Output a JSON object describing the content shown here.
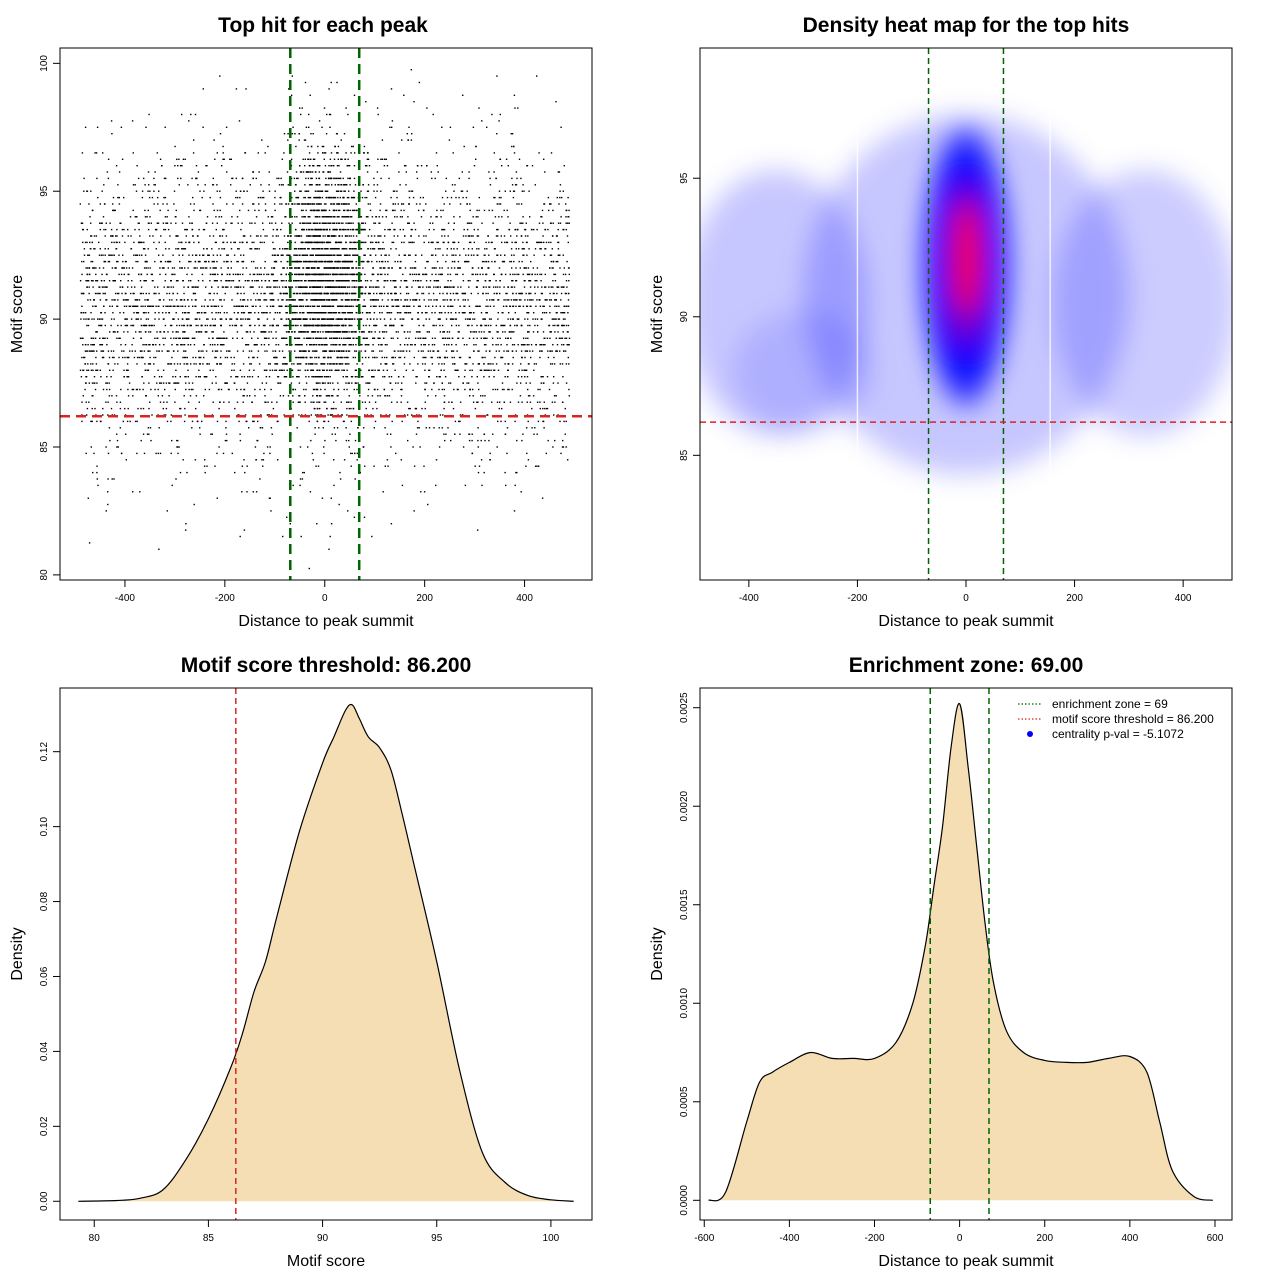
{
  "chart_data": [
    {
      "type": "scatter",
      "title": "Top hit for each peak",
      "xlabel": "Distance to peak summit",
      "ylabel": "Motif score",
      "xlim": [
        -530,
        535
      ],
      "ylim": [
        79.8,
        100.6
      ],
      "xticks": [
        -400,
        -200,
        0,
        200,
        400
      ],
      "yticks": [
        80,
        85,
        90,
        95,
        100
      ],
      "vlines": [
        -69,
        69
      ],
      "hline": 86.2,
      "point_count": 7000,
      "x_range": [
        -490,
        490
      ],
      "colors": {
        "points": "#000000",
        "vline": "#006400",
        "hline": "#dd2222"
      }
    },
    {
      "type": "heatmap",
      "title": "Density heat map for the top hits",
      "xlabel": "Distance to peak summit",
      "ylabel": "Motif score",
      "xlim": [
        -490,
        490
      ],
      "ylim": [
        80.5,
        99.7
      ],
      "xticks": [
        -400,
        -200,
        0,
        200,
        400
      ],
      "yticks": [
        85,
        90,
        95
      ],
      "vlines": [
        -69,
        69
      ],
      "hline": 86.2,
      "colors": {
        "low": "#ffffff",
        "mid": "#0000ff",
        "high": "#ff0000",
        "vline": "#006400",
        "hline": "#dd2222"
      }
    },
    {
      "type": "area",
      "title": "Motif score threshold: 86.200",
      "xlabel": "Motif score",
      "ylabel": "Density",
      "xlim": [
        78.5,
        101.8
      ],
      "ylim": [
        -0.005,
        0.137
      ],
      "xticks": [
        80,
        85,
        90,
        95,
        100
      ],
      "yticks": [
        0.0,
        0.02,
        0.04,
        0.06,
        0.08,
        0.1,
        0.12
      ],
      "vline": 86.2,
      "x": [
        79.3,
        81,
        82,
        83,
        84,
        85,
        86,
        86.5,
        87,
        87.5,
        88,
        89,
        90,
        90.5,
        91,
        91.3,
        91.6,
        92,
        92.5,
        93,
        93.5,
        94,
        95,
        96,
        97,
        98,
        99,
        100,
        101
      ],
      "y": [
        0,
        0.0002,
        0.0008,
        0.003,
        0.011,
        0.022,
        0.036,
        0.045,
        0.056,
        0.064,
        0.076,
        0.099,
        0.117,
        0.124,
        0.131,
        0.1325,
        0.129,
        0.124,
        0.121,
        0.115,
        0.103,
        0.09,
        0.064,
        0.035,
        0.013,
        0.005,
        0.0015,
        0.0004,
        0
      ],
      "colors": {
        "fill": "#f5deb3",
        "line": "#000000",
        "vline": "#dd2222"
      }
    },
    {
      "type": "area",
      "title": "Enrichment zone: 69.00",
      "xlabel": "Distance to peak summit",
      "ylabel": "Density",
      "xlim": [
        -610,
        640
      ],
      "ylim": [
        -0.0001,
        0.0026
      ],
      "xticks": [
        -600,
        -400,
        -200,
        0,
        200,
        400,
        600
      ],
      "yticks": [
        "0.0000",
        "0.0005",
        "0.0010",
        "0.0015",
        "0.0020",
        "0.0025"
      ],
      "vlines": [
        -69,
        69
      ],
      "x": [
        -590,
        -550,
        -500,
        -470,
        -440,
        -400,
        -350,
        -300,
        -250,
        -200,
        -150,
        -110,
        -80,
        -60,
        -40,
        -20,
        0,
        20,
        40,
        60,
        80,
        110,
        150,
        200,
        250,
        300,
        350,
        400,
        440,
        470,
        500,
        550,
        595
      ],
      "y": [
        0,
        4e-05,
        0.0004,
        0.0006,
        0.00065,
        0.0007,
        0.00075,
        0.00072,
        0.00072,
        0.00072,
        0.0008,
        0.001,
        0.0013,
        0.0016,
        0.0019,
        0.0023,
        0.00252,
        0.0022,
        0.0018,
        0.0014,
        0.0011,
        0.00086,
        0.00075,
        0.00071,
        0.0007,
        0.0007,
        0.00072,
        0.00073,
        0.00065,
        0.0004,
        0.00015,
        2e-05,
        0
      ],
      "legend": [
        {
          "label": "enrichment zone = 69",
          "style": "dotted",
          "color": "#006400"
        },
        {
          "label": "motif score threshold = 86.200",
          "style": "dotted",
          "color": "#dd2222"
        },
        {
          "label": "centrality p-val = -5.1072",
          "style": "point",
          "color": "#0000ff"
        }
      ],
      "legend_position": "top-right",
      "colors": {
        "fill": "#f5deb3",
        "line": "#000000",
        "vline": "#006400"
      }
    }
  ]
}
